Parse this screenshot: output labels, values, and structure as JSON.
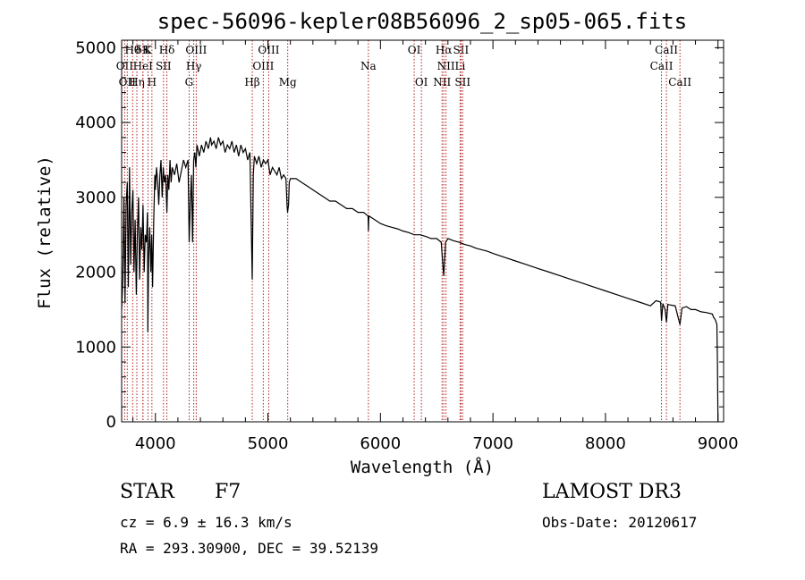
{
  "chart_data": {
    "type": "line",
    "title": "spec-56096-kepler08B56096_2_sp05-065.fits",
    "xlabel": "Wavelength (Å)",
    "ylabel": "Flux (relative)",
    "xlim": [
      3700,
      9050
    ],
    "ylim": [
      0,
      5100
    ],
    "xticks": [
      4000,
      5000,
      6000,
      7000,
      8000,
      9000
    ],
    "yticks": [
      0,
      1000,
      2000,
      3000,
      4000,
      5000
    ],
    "grid": false,
    "series": [
      {
        "name": "flux",
        "x": [
          3700,
          3710,
          3720,
          3730,
          3740,
          3750,
          3760,
          3770,
          3780,
          3790,
          3800,
          3810,
          3820,
          3830,
          3840,
          3850,
          3860,
          3870,
          3880,
          3890,
          3900,
          3910,
          3920,
          3930,
          3933,
          3940,
          3950,
          3960,
          3968,
          3975,
          3985,
          3995,
          4000,
          4010,
          4020,
          4030,
          4040,
          4050,
          4060,
          4070,
          4080,
          4090,
          4102,
          4110,
          4120,
          4130,
          4140,
          4150,
          4170,
          4190,
          4210,
          4230,
          4250,
          4270,
          4290,
          4300,
          4310,
          4320,
          4330,
          4340,
          4350,
          4360,
          4370,
          4390,
          4410,
          4430,
          4450,
          4470,
          4490,
          4500,
          4520,
          4540,
          4560,
          4580,
          4600,
          4620,
          4640,
          4660,
          4680,
          4700,
          4720,
          4740,
          4760,
          4780,
          4800,
          4820,
          4840,
          4861,
          4870,
          4880,
          4900,
          4920,
          4940,
          4960,
          4980,
          5000,
          5020,
          5040,
          5060,
          5080,
          5100,
          5120,
          5140,
          5160,
          5170,
          5175,
          5183,
          5190,
          5200,
          5250,
          5300,
          5350,
          5400,
          5450,
          5500,
          5550,
          5600,
          5650,
          5700,
          5750,
          5800,
          5850,
          5890,
          5893,
          5896,
          5900,
          5950,
          6000,
          6050,
          6100,
          6150,
          6200,
          6250,
          6300,
          6350,
          6400,
          6450,
          6500,
          6540,
          6555,
          6563,
          6570,
          6580,
          6600,
          6650,
          6700,
          6750,
          6800,
          6850,
          6900,
          6950,
          7000,
          7100,
          7200,
          7300,
          7400,
          7500,
          7600,
          7700,
          7800,
          7900,
          8000,
          8100,
          8200,
          8300,
          8400,
          8450,
          8490,
          8498,
          8510,
          8530,
          8542,
          8555,
          8580,
          8620,
          8662,
          8680,
          8720,
          8760,
          8800,
          8850,
          8900,
          8950,
          8960,
          8970,
          8980,
          8990,
          8995,
          9000
        ],
        "values": [
          1500,
          1900,
          3000,
          1600,
          2900,
          3200,
          1800,
          3400,
          2100,
          2800,
          3100,
          2000,
          2700,
          1700,
          2500,
          3000,
          1900,
          2600,
          2300,
          2900,
          2000,
          2500,
          2400,
          2800,
          1200,
          2200,
          2600,
          2000,
          2500,
          1800,
          2700,
          3300,
          3100,
          3400,
          3200,
          2900,
          3300,
          3500,
          3000,
          3400,
          3200,
          3300,
          2800,
          3300,
          3100,
          3500,
          3200,
          3400,
          3300,
          3450,
          3200,
          3350,
          3500,
          3400,
          3500,
          2400,
          2900,
          3300,
          2400,
          3500,
          3600,
          3400,
          3700,
          3550,
          3700,
          3600,
          3750,
          3650,
          3800,
          3700,
          3750,
          3650,
          3800,
          3700,
          3750,
          3600,
          3700,
          3650,
          3750,
          3600,
          3700,
          3550,
          3700,
          3600,
          3650,
          3500,
          3600,
          1900,
          3300,
          3550,
          3450,
          3550,
          3400,
          3500,
          3450,
          3500,
          3300,
          3400,
          3350,
          3300,
          3400,
          3250,
          3300,
          3250,
          2900,
          2800,
          2900,
          3200,
          3250,
          3250,
          3200,
          3150,
          3100,
          3050,
          3000,
          2950,
          2950,
          2900,
          2850,
          2850,
          2800,
          2800,
          2750,
          2550,
          2700,
          2750,
          2700,
          2650,
          2620,
          2600,
          2580,
          2550,
          2530,
          2500,
          2500,
          2480,
          2450,
          2450,
          2400,
          2100,
          1950,
          2150,
          2400,
          2450,
          2420,
          2400,
          2370,
          2350,
          2320,
          2300,
          2280,
          2250,
          2200,
          2150,
          2100,
          2050,
          2000,
          1950,
          1900,
          1850,
          1800,
          1750,
          1700,
          1650,
          1600,
          1550,
          1620,
          1600,
          1350,
          1580,
          1500,
          1330,
          1570,
          1560,
          1550,
          1300,
          1520,
          1540,
          1500,
          1500,
          1470,
          1460,
          1440,
          1400,
          1380,
          1350,
          1300,
          800,
          0
        ]
      }
    ],
    "line_markers": [
      {
        "wavelength": 3727,
        "label": "OII",
        "row": 2
      },
      {
        "wavelength": 3750,
        "label": "OII",
        "row": 3
      },
      {
        "wavelength": 3798,
        "label": "Hθ",
        "row": 1
      },
      {
        "wavelength": 3835,
        "label": "Hη",
        "row": 3
      },
      {
        "wavelength": 3889,
        "label": "δK",
        "row": 1
      },
      {
        "wavelength": 3889,
        "label": "HeI",
        "row": 2
      },
      {
        "wavelength": 3934,
        "label": "K",
        "row": 1
      },
      {
        "wavelength": 3969,
        "label": "H",
        "row": 3
      },
      {
        "wavelength": 4072,
        "label": "SII",
        "row": 2
      },
      {
        "wavelength": 4102,
        "label": "Hδ",
        "row": 1
      },
      {
        "wavelength": 4300,
        "label": "G",
        "row": 3
      },
      {
        "wavelength": 4341,
        "label": "Hγ",
        "row": 2
      },
      {
        "wavelength": 4363,
        "label": "OIII",
        "row": 1
      },
      {
        "wavelength": 4861,
        "label": "Hβ",
        "row": 3
      },
      {
        "wavelength": 4959,
        "label": "OIII",
        "row": 2
      },
      {
        "wavelength": 5007,
        "label": "OIII",
        "row": 1
      },
      {
        "wavelength": 5176,
        "label": "Mg",
        "row": 3
      },
      {
        "wavelength": 5893,
        "label": "Na",
        "row": 2
      },
      {
        "wavelength": 6300,
        "label": "OI",
        "row": 1
      },
      {
        "wavelength": 6364,
        "label": "OI",
        "row": 3
      },
      {
        "wavelength": 6548,
        "label": "NII",
        "row": 3
      },
      {
        "wavelength": 6563,
        "label": "Hα",
        "row": 1
      },
      {
        "wavelength": 6583,
        "label": "NII",
        "row": 2
      },
      {
        "wavelength": 6708,
        "label": "Li",
        "row": 2
      },
      {
        "wavelength": 6716,
        "label": "SII",
        "row": 1
      },
      {
        "wavelength": 6731,
        "label": "SII",
        "row": 3
      },
      {
        "wavelength": 8498,
        "label": "CaII",
        "row": 2
      },
      {
        "wavelength": 8542,
        "label": "CaII",
        "row": 1
      },
      {
        "wavelength": 8662,
        "label": "CaII",
        "row": 3
      }
    ]
  },
  "info": {
    "object_class": "STAR",
    "subclass": "F7",
    "survey": "LAMOST DR3",
    "cz_text": "cz = 6.9 ± 16.3 km/s",
    "obs_date_text": "Obs-Date: 20120617",
    "coords_text": "RA = 293.30900, DEC =  39.52139"
  },
  "colors": {
    "spectrum": "#000000",
    "markers": "#b22222",
    "axes": "#000000"
  }
}
